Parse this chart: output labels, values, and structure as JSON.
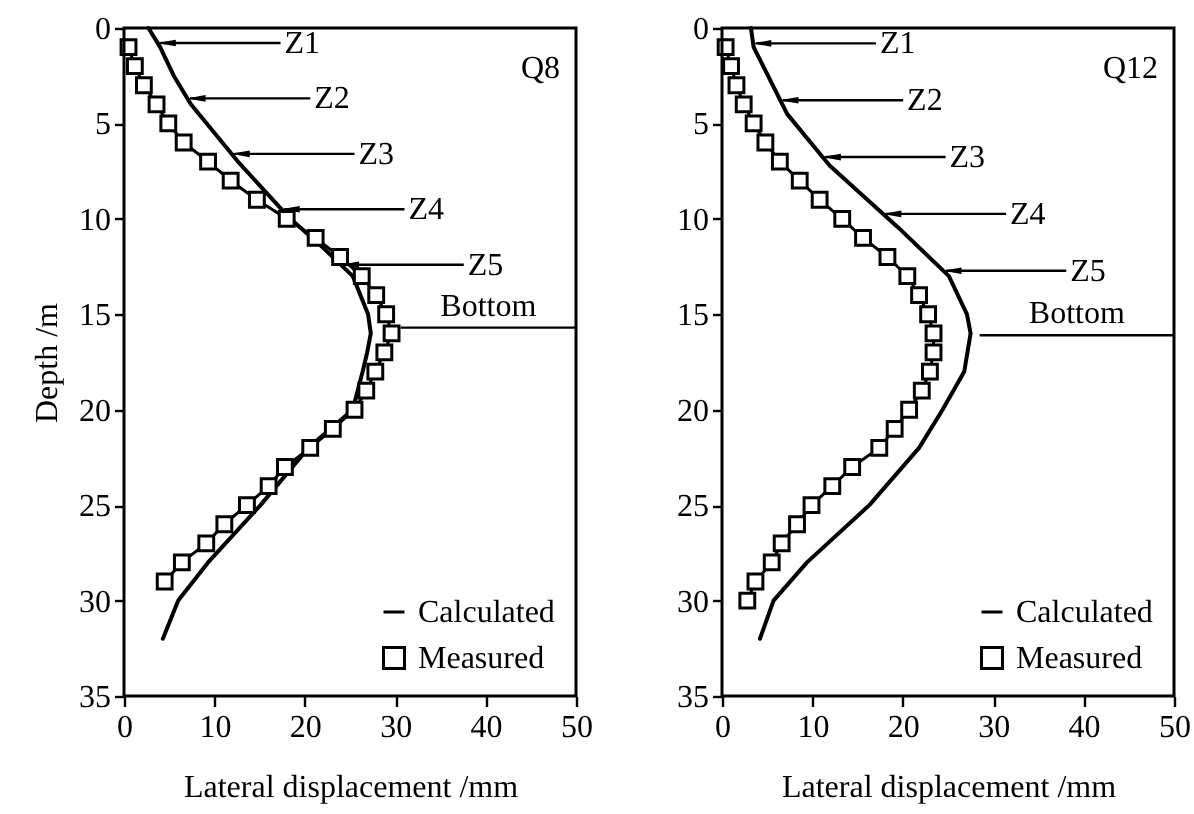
{
  "chart_data": [
    {
      "type": "line",
      "title": "Q8",
      "xlabel": "Lateral displacement /mm",
      "ylabel": "Depth /m",
      "xlim": [
        0,
        50
      ],
      "ylim": [
        35,
        0
      ],
      "xticks": [
        0,
        10,
        20,
        30,
        40,
        50
      ],
      "yticks": [
        0,
        5,
        10,
        15,
        20,
        25,
        30,
        35
      ],
      "grid": false,
      "legend": "bottom right",
      "series": [
        {
          "name": "Calculated",
          "color": "#000000",
          "marker": "none",
          "line_style": "solid",
          "x": [
            2.7,
            4.0,
            5.5,
            7.4,
            12.6,
            18.4,
            22.0,
            25.3,
            27.0,
            27.3,
            26.9,
            26.4,
            25.3,
            20.4,
            15.1,
            9.3,
            6.0,
            4.3
          ],
          "values": [
            0,
            1,
            2.5,
            4,
            7,
            10,
            11.5,
            13,
            15,
            16,
            17,
            18,
            20,
            22,
            25,
            28,
            30,
            32
          ]
        },
        {
          "name": "Measured",
          "color": "#000000",
          "marker": "square",
          "line_style": "solid",
          "x": [
            0.5,
            1.2,
            2.2,
            3.6,
            4.9,
            6.6,
            9.3,
            11.8,
            14.7,
            18.0,
            21.2,
            23.9,
            26.3,
            27.9,
            29.0,
            29.6,
            28.8,
            27.8,
            26.8,
            25.5,
            23.1,
            20.6,
            17.8,
            16.0,
            13.6,
            11.1,
            9.1,
            6.4,
            4.5
          ],
          "values": [
            1,
            2,
            3,
            4,
            5,
            6,
            7,
            8,
            9,
            10,
            11,
            12,
            13,
            14,
            15,
            16,
            17,
            18,
            19,
            20,
            21,
            22,
            23,
            24,
            25,
            26,
            27,
            28,
            29
          ]
        }
      ],
      "ref_lines": [
        {
          "axis": "y",
          "value": 15.7,
          "label": "Bottom"
        }
      ],
      "annotations": [
        "Z1",
        "Z2",
        "Z3",
        "Z4",
        "Z5"
      ]
    },
    {
      "type": "line",
      "title": "Q12",
      "xlabel": "Lateral displacement /mm",
      "xlim": [
        0,
        50
      ],
      "ylim": [
        35,
        0
      ],
      "xticks": [
        0,
        10,
        20,
        30,
        40,
        50
      ],
      "yticks": [
        0,
        5,
        10,
        15,
        20,
        25,
        30,
        35
      ],
      "grid": false,
      "legend": "bottom right",
      "series": [
        {
          "name": "Calculated",
          "color": "#000000",
          "marker": "none",
          "line_style": "solid",
          "x": [
            3.2,
            3.5,
            7.2,
            11.9,
            19.6,
            25.1,
            27.1,
            27.5,
            26.8,
            24.4,
            21.8,
            16.3,
            9.4,
            5.7,
            4.2
          ],
          "values": [
            0,
            1,
            4.5,
            7.2,
            10.5,
            13,
            15,
            16,
            18,
            20,
            22,
            25,
            28,
            30,
            32
          ]
        },
        {
          "name": "Measured",
          "color": "#000000",
          "marker": "square",
          "line_style": "solid",
          "x": [
            0.4,
            1.0,
            1.6,
            2.4,
            3.5,
            4.8,
            6.4,
            8.6,
            10.8,
            13.3,
            15.6,
            18.3,
            20.5,
            21.8,
            22.8,
            23.4,
            23.4,
            23.0,
            22.1,
            20.7,
            19.1,
            17.4,
            14.4,
            12.2,
            9.9,
            8.3,
            6.6,
            5.5,
            3.7,
            2.8
          ],
          "values": [
            1,
            2,
            3,
            4,
            5,
            6,
            7,
            8,
            9,
            10,
            11,
            12,
            13,
            14,
            15,
            16,
            17,
            18,
            19,
            20,
            21,
            22,
            23,
            24,
            25,
            26,
            27,
            28,
            29,
            30
          ]
        }
      ],
      "ref_lines": [
        {
          "axis": "y",
          "value": 16.1,
          "label": "Bottom"
        }
      ],
      "annotations": [
        "Z1",
        "Z2",
        "Z3",
        "Z4",
        "Z5"
      ]
    }
  ]
}
